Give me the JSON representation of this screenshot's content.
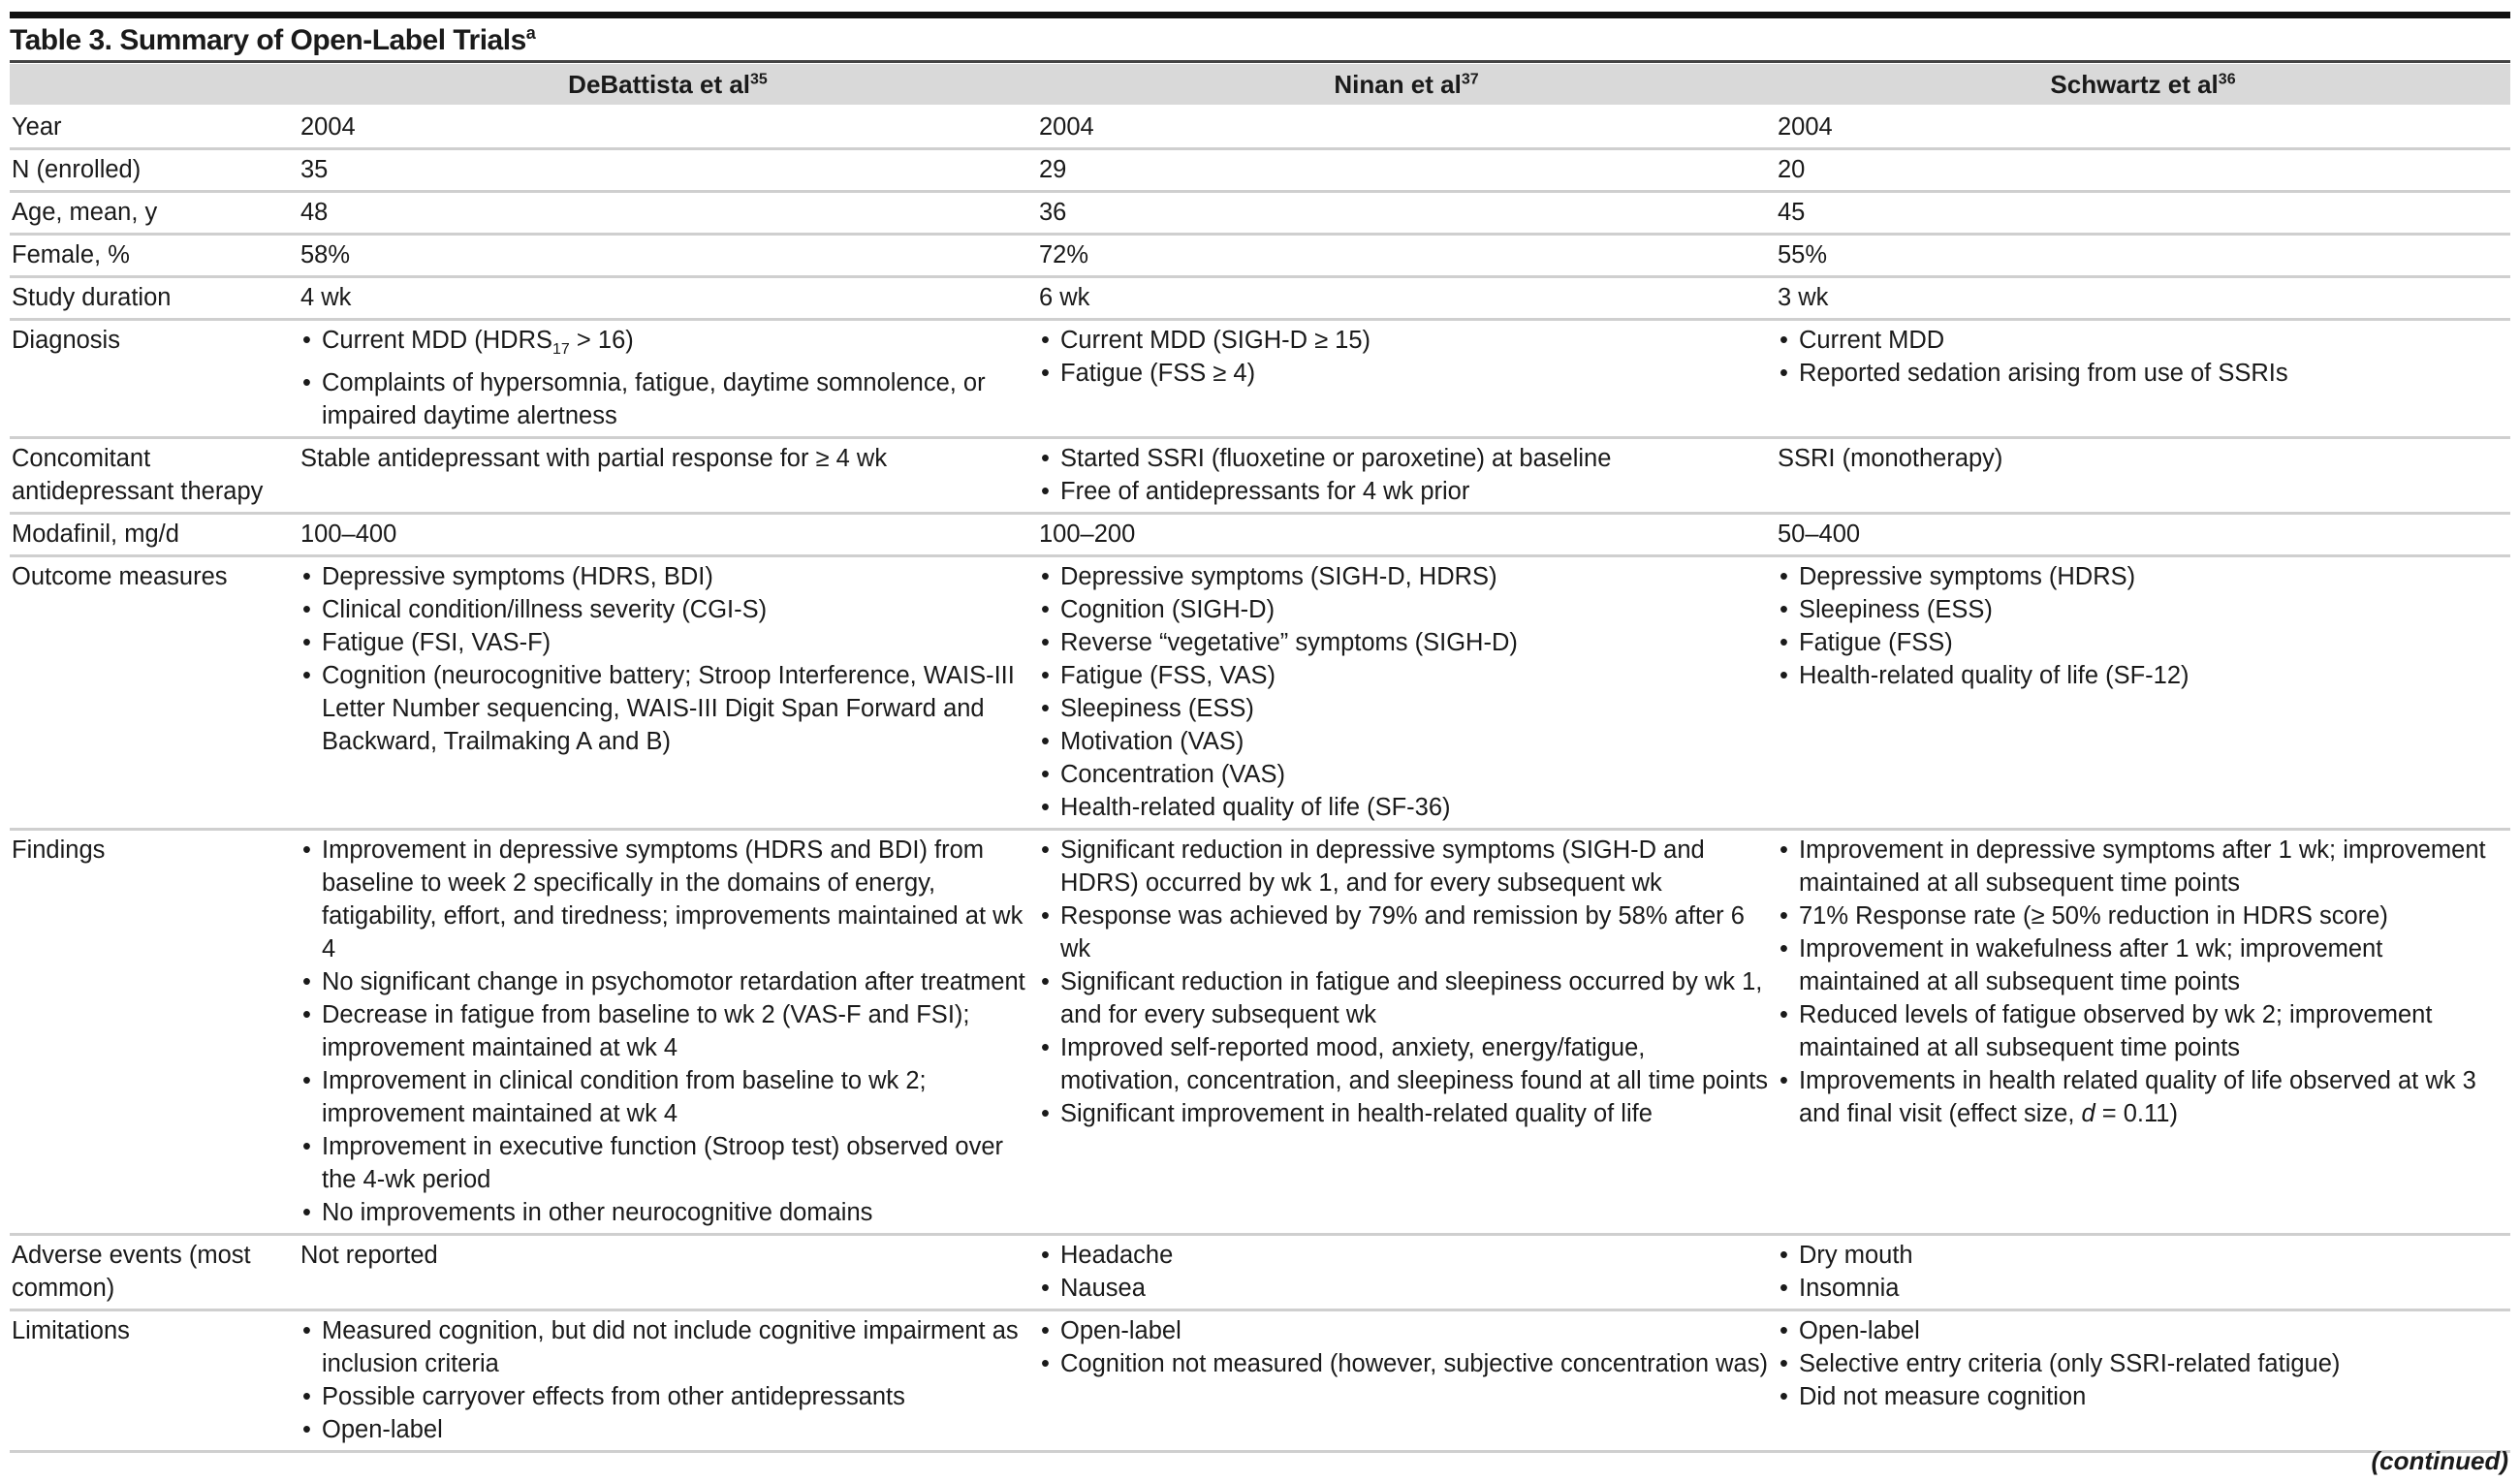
{
  "table": {
    "title": "Table 3. Summary of Open-Label Trials",
    "title_sup": "a",
    "columns": [
      {
        "name": "DeBattista et al",
        "ref": "35"
      },
      {
        "name": "Ninan et al",
        "ref": "37"
      },
      {
        "name": "Schwartz et al",
        "ref": "36"
      }
    ],
    "rows": [
      {
        "label": "Year",
        "cells": [
          {
            "text": "2004"
          },
          {
            "text": "2004"
          },
          {
            "text": "2004"
          }
        ]
      },
      {
        "label": "N (enrolled)",
        "cells": [
          {
            "text": "35"
          },
          {
            "text": "29"
          },
          {
            "text": "20"
          }
        ]
      },
      {
        "label": "Age, mean, y",
        "cells": [
          {
            "text": "48"
          },
          {
            "text": "36"
          },
          {
            "text": "45"
          }
        ]
      },
      {
        "label": "Female, %",
        "cells": [
          {
            "text": "58%"
          },
          {
            "text": "72%"
          },
          {
            "text": "55%"
          }
        ]
      },
      {
        "label": "Study duration",
        "cells": [
          {
            "text": "4 wk"
          },
          {
            "text": "6 wk"
          },
          {
            "text": "3 wk"
          }
        ]
      },
      {
        "label": "Diagnosis",
        "cells": [
          {
            "bullets": [
              {
                "parts": [
                  {
                    "t": "Current MDD (HDRS"
                  },
                  {
                    "t": "17",
                    "s": "sub"
                  },
                  {
                    "t": " > 16)"
                  }
                ]
              },
              "Complaints of hypersomnia, fatigue, daytime somnolence, or impaired daytime alertness"
            ]
          },
          {
            "bullets": [
              "Current MDD (SIGH-D ≥ 15)",
              "Fatigue (FSS ≥ 4)"
            ]
          },
          {
            "bullets": [
              "Current MDD",
              "Reported sedation arising from use of SSRIs"
            ]
          }
        ]
      },
      {
        "label": "Concomitant antidepressant therapy",
        "cells": [
          {
            "text": "Stable antidepressant with partial response for ≥ 4 wk"
          },
          {
            "bullets": [
              "Started SSRI (fluoxetine or paroxetine) at baseline",
              "Free of antidepressants for 4 wk prior"
            ]
          },
          {
            "text": "SSRI (monotherapy)"
          }
        ]
      },
      {
        "label": "Modafinil, mg/d",
        "cells": [
          {
            "text": "100–400"
          },
          {
            "text": "100–200"
          },
          {
            "text": "50–400"
          }
        ]
      },
      {
        "label": "Outcome measures",
        "cells": [
          {
            "bullets": [
              "Depressive symptoms (HDRS, BDI)",
              "Clinical condition/illness severity (CGI-S)",
              "Fatigue (FSI, VAS-F)",
              "Cognition (neurocognitive battery; Stroop Interference, WAIS-III Letter Number sequencing, WAIS-III Digit Span Forward and Backward, Trailmaking A and B)"
            ]
          },
          {
            "bullets": [
              "Depressive symptoms (SIGH-D, HDRS)",
              "Cognition (SIGH-D)",
              "Reverse “vegetative” symptoms (SIGH-D)",
              "Fatigue (FSS, VAS)",
              "Sleepiness (ESS)",
              "Motivation (VAS)",
              "Concentration (VAS)",
              "Health-related quality of life (SF-36)"
            ]
          },
          {
            "bullets": [
              "Depressive symptoms (HDRS)",
              "Sleepiness (ESS)",
              "Fatigue (FSS)",
              "Health-related quality of life (SF-12)"
            ]
          }
        ]
      },
      {
        "label": "Findings",
        "cells": [
          {
            "bullets": [
              "Improvement in depressive symptoms (HDRS and BDI) from baseline to week 2 specifically in the domains of energy, fatigability, effort, and tiredness; improvements maintained at wk 4",
              "No significant change in psychomotor retardation after treatment",
              "Decrease in fatigue from baseline to wk 2 (VAS-F and FSI); improvement maintained at wk 4",
              "Improvement in clinical condition from baseline to wk 2; improvement maintained at wk 4",
              "Improvement in executive function (Stroop test) observed over the 4-wk period",
              "No improvements in other neurocognitive domains"
            ]
          },
          {
            "bullets": [
              "Significant reduction in depressive symptoms (SIGH-D and HDRS) occurred by wk 1, and for every subsequent wk",
              "Response was achieved by 79% and remission by 58% after 6 wk",
              "Significant reduction in fatigue and sleepiness occurred by wk 1, and for every subsequent wk",
              "Improved self-reported mood, anxiety, energy/fatigue, motivation, concentration, and sleepiness found at all time points",
              "Significant improvement in health-related quality of life"
            ]
          },
          {
            "bullets": [
              "Improvement in depressive symptoms after 1 wk; improvement maintained at all subsequent time points",
              "71% Response rate (≥ 50% reduction in HDRS score)",
              "Improvement in wakefulness after 1 wk; improvement maintained at all subsequent time points",
              "Reduced levels of fatigue observed by wk 2; improvement maintained at all subsequent time points",
              {
                "parts": [
                  {
                    "t": "Improvements in health related quality of life observed at wk 3 and final visit (effect size, "
                  },
                  {
                    "t": "d",
                    "s": "it"
                  },
                  {
                    "t": " = 0.11)"
                  }
                ]
              }
            ]
          }
        ]
      },
      {
        "label": "Adverse events (most common)",
        "cells": [
          {
            "text": "Not reported"
          },
          {
            "bullets": [
              "Headache",
              "Nausea"
            ]
          },
          {
            "bullets": [
              "Dry mouth",
              "Insomnia"
            ]
          }
        ]
      },
      {
        "label": "Limitations",
        "cells": [
          {
            "bullets": [
              "Measured cognition, but did not include cognitive impairment as inclusion criteria",
              "Possible carryover effects from other antidepressants",
              "Open-label"
            ]
          },
          {
            "bullets": [
              "Open-label",
              "Cognition not measured (however, subjective concentration was)"
            ]
          },
          {
            "bullets": [
              "Open-label",
              "Selective entry criteria (only SSRI-related fatigue)",
              "Did not measure cognition"
            ]
          }
        ]
      }
    ],
    "footer": "(continued)"
  }
}
